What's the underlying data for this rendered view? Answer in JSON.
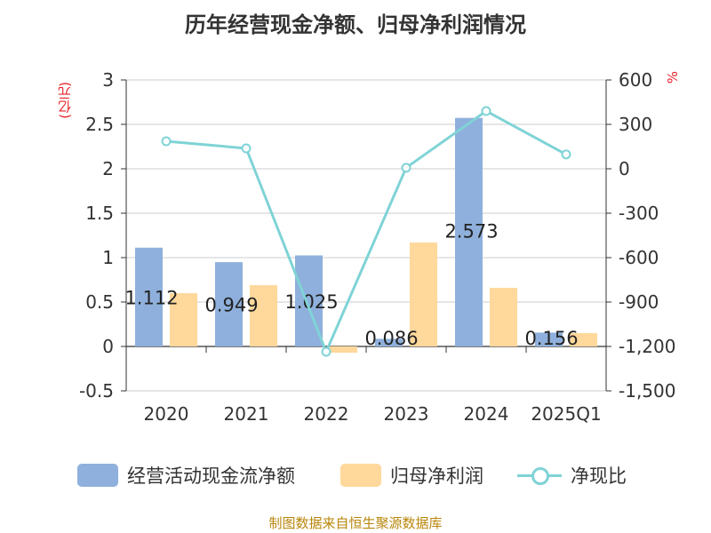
{
  "title": "历年经营现金净额、归母净利润情况",
  "source": "制图数据来自恒生聚源数据库",
  "colors": {
    "cash_flow": "#8fb0dc",
    "net_profit": "#ffd89b",
    "ratio_line": "#7fd3d6",
    "axis_unit_text": "#e8222a",
    "source_text": "#b8860b"
  },
  "chart_data": {
    "type": "bar",
    "title": "历年经营现金净额、归母净利润情况",
    "categories": [
      "2020",
      "2021",
      "2022",
      "2023",
      "2024",
      "2025Q1"
    ],
    "left_axis": {
      "unit_label": "(亿元)",
      "ylim": [
        -0.5,
        3
      ],
      "ticks": [
        "-0.5",
        "0",
        "0.5",
        "1",
        "1.5",
        "2",
        "2.5",
        "3"
      ],
      "tick_values": [
        -0.5,
        0,
        0.5,
        1,
        1.5,
        2,
        2.5,
        3
      ]
    },
    "right_axis": {
      "unit_label": "%",
      "ylim": [
        -1500,
        600
      ],
      "ticks": [
        "-1,500",
        "-1,200",
        "-900",
        "-600",
        "-300",
        "0",
        "300",
        "600"
      ],
      "tick_values": [
        -1500,
        -1200,
        -900,
        -600,
        -300,
        0,
        300,
        600
      ]
    },
    "grid": true,
    "legend_position": "bottom",
    "series": [
      {
        "name": "经营活动现金流净额",
        "kind": "bar",
        "axis": "left",
        "values": [
          1.112,
          0.949,
          1.025,
          0.086,
          2.573,
          0.156
        ],
        "labels": [
          "1.112",
          "0.949",
          "1.025",
          "0.086",
          "2.573",
          "0.156"
        ]
      },
      {
        "name": "归母净利润",
        "kind": "bar",
        "axis": "left",
        "values": [
          0.6,
          0.69,
          -0.07,
          1.17,
          0.66,
          0.15
        ]
      },
      {
        "name": "净现比",
        "kind": "line",
        "axis": "right",
        "values": [
          186,
          138,
          -1236,
          7,
          390,
          97
        ]
      }
    ]
  }
}
